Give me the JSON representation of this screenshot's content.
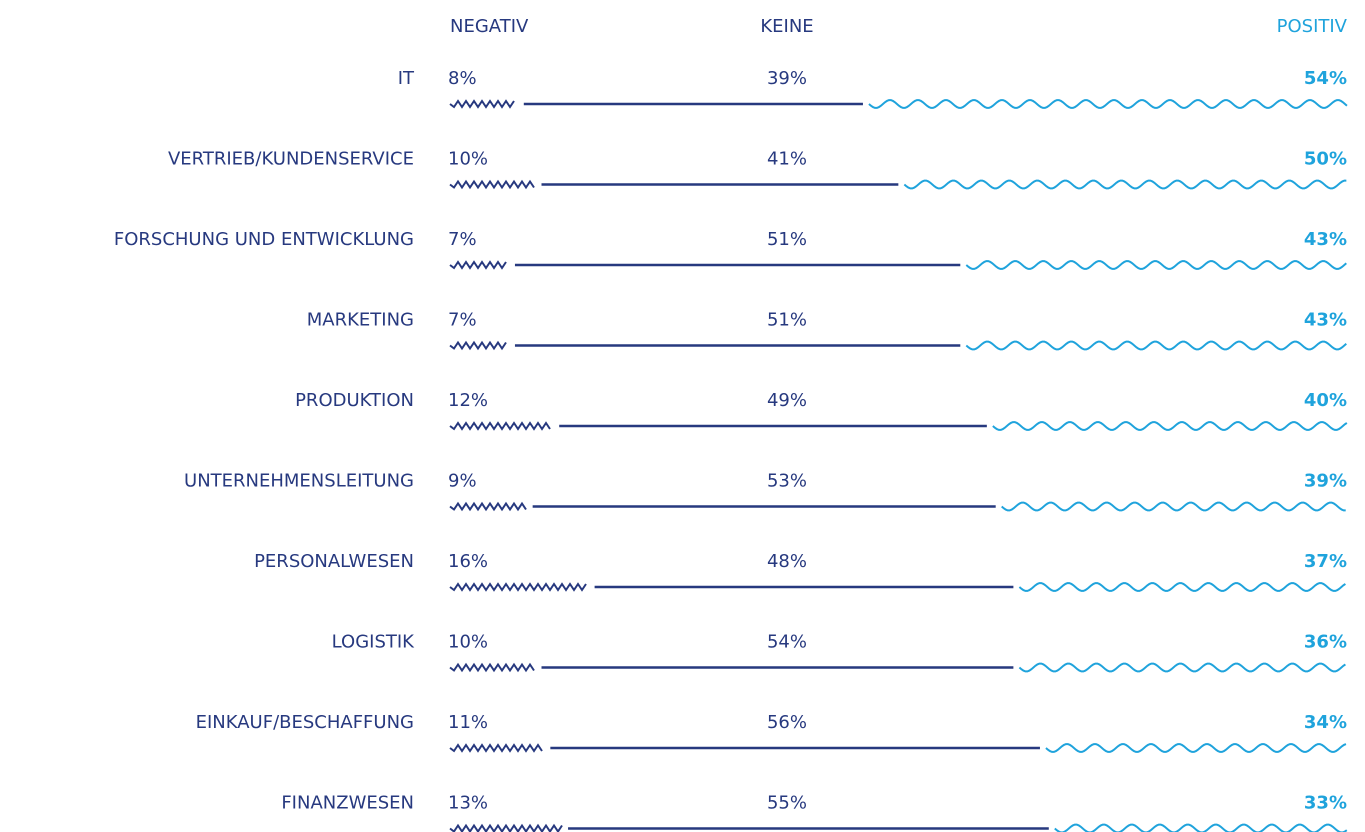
{
  "chart_data": {
    "type": "bar",
    "orientation": "horizontal",
    "stacked": true,
    "categories": [
      "IT",
      "VERTRIEB/KUNDENSERVICE",
      "FORSCHUNG UND ENTWICKLUNG",
      "MARKETING",
      "PRODUKTION",
      "UNTERNEHMENSLEITUNG",
      "PERSONALWESEN",
      "LOGISTIK",
      "EINKAUF/BESCHAFFUNG",
      "FINANZWESEN"
    ],
    "series": [
      {
        "name": "NEGATIV",
        "color": "#27397f",
        "values": [
          8,
          10,
          7,
          7,
          12,
          9,
          16,
          10,
          11,
          13
        ],
        "value_labels": [
          "8%",
          "10%",
          "7%",
          "7%",
          "12%",
          "9%",
          "16%",
          "10%",
          "11%",
          "13%"
        ]
      },
      {
        "name": "KEINE",
        "color": "#27397f",
        "values": [
          39,
          41,
          51,
          51,
          49,
          53,
          48,
          54,
          56,
          55
        ],
        "value_labels": [
          "39%",
          "41%",
          "51%",
          "51%",
          "49%",
          "53%",
          "48%",
          "54%",
          "56%",
          "55%"
        ]
      },
      {
        "name": "POSITIV",
        "color": "#1fa3dc",
        "values": [
          54,
          50,
          43,
          43,
          40,
          39,
          37,
          36,
          34,
          33
        ],
        "value_labels": [
          "54%",
          "50%",
          "43%",
          "43%",
          "40%",
          "39%",
          "37%",
          "36%",
          "34%",
          "33%"
        ]
      }
    ]
  }
}
